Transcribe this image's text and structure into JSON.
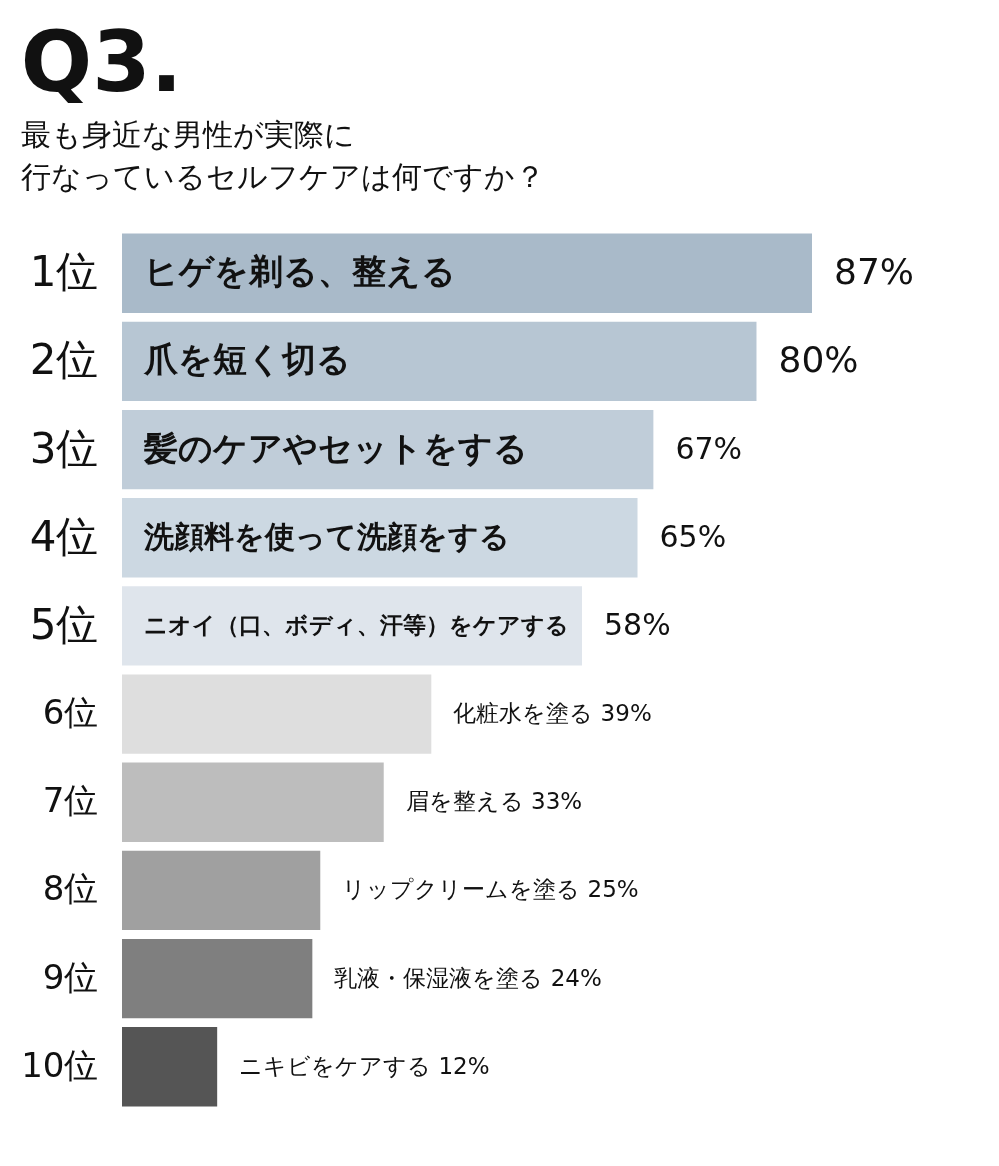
{
  "chart_data": {
    "type": "bar",
    "orientation": "horizontal",
    "title": "Q3.",
    "subtitle": "最も身近な男性が実際に行なっているセルフケアは何ですか？",
    "categories": [
      "1位",
      "2位",
      "3位",
      "4位",
      "5位",
      "6位",
      "7位",
      "8位",
      "9位",
      "10位"
    ],
    "values": [
      87,
      80,
      67,
      65,
      58,
      39,
      33,
      25,
      24,
      12
    ],
    "colors": [
      "#a9bac9",
      "#b7c6d3",
      "#c0cdd9",
      "#ccd8e2",
      "#dfe5ec",
      "#dedede",
      "#bdbdbd",
      "#a0a0a0",
      "#7f7f7f",
      "#555555"
    ],
    "value_labels": [
      "87%",
      "80%",
      "67%",
      "65%",
      "58%",
      "化粧水を塗る 39%",
      "眉を整える 33%",
      "リップクリームを塗る 25%",
      "乳液・保湿液を塗る 24%",
      "ニキビをケアする 12%"
    ],
    "annotations": [
      {
        "text": "ヒゲを剃る、整える",
        "y": "1位"
      },
      {
        "text": "爪を短く切る",
        "y": "2位"
      },
      {
        "text": "髪のケアやセットをする",
        "y": "3位"
      },
      {
        "text": "洗顔料を使って洗顔をする",
        "y": "4位"
      },
      {
        "text": "ニオイ（口、ボディ、汗等）をケアする",
        "y": "5位"
      }
    ]
  }
}
